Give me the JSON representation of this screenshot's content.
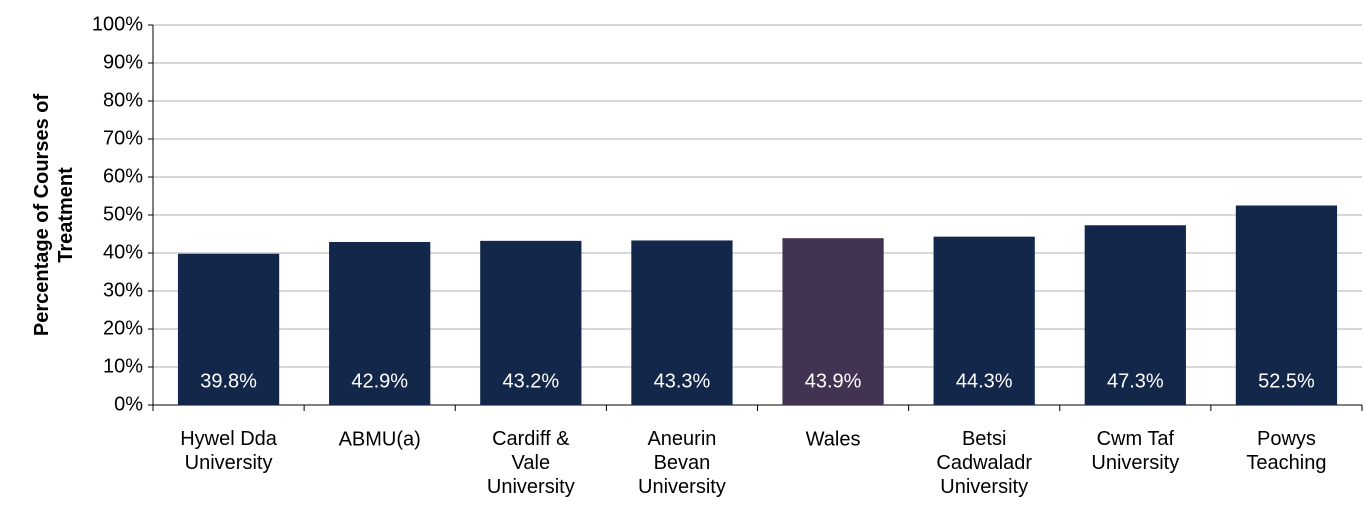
{
  "chart_data": {
    "type": "bar",
    "y_label": "Percentage of Courses of\nTreatment",
    "categories": [
      "Hywel Dda\nUniversity",
      "ABMU(a)",
      "Cardiff &\nVale\nUniversity",
      "Aneurin\nBevan\nUniversity",
      "Wales",
      "Betsi\nCadwaladr\nUniversity",
      "Cwm Taf\nUniversity",
      "Powys\nTeaching"
    ],
    "values": [
      39.8,
      42.9,
      43.2,
      43.3,
      43.9,
      44.3,
      47.3,
      52.5
    ],
    "value_labels": [
      "39.8%",
      "42.9%",
      "43.2%",
      "43.3%",
      "43.9%",
      "44.3%",
      "47.3%",
      "52.5%"
    ],
    "colors": [
      "#13274a",
      "#13274a",
      "#13274a",
      "#13274a",
      "#433352",
      "#13274a",
      "#13274a",
      "#13274a"
    ],
    "ylim": [
      0,
      100
    ],
    "yticks": [
      {
        "value": 0,
        "label": "0%"
      },
      {
        "value": 10,
        "label": "10%"
      },
      {
        "value": 20,
        "label": "20%"
      },
      {
        "value": 30,
        "label": "30%"
      },
      {
        "value": 40,
        "label": "40%"
      },
      {
        "value": 50,
        "label": "50%"
      },
      {
        "value": 60,
        "label": "60%"
      },
      {
        "value": 70,
        "label": "70%"
      },
      {
        "value": 80,
        "label": "80%"
      },
      {
        "value": 90,
        "label": "90%"
      },
      {
        "value": 100,
        "label": "100%"
      }
    ],
    "grid": true
  }
}
